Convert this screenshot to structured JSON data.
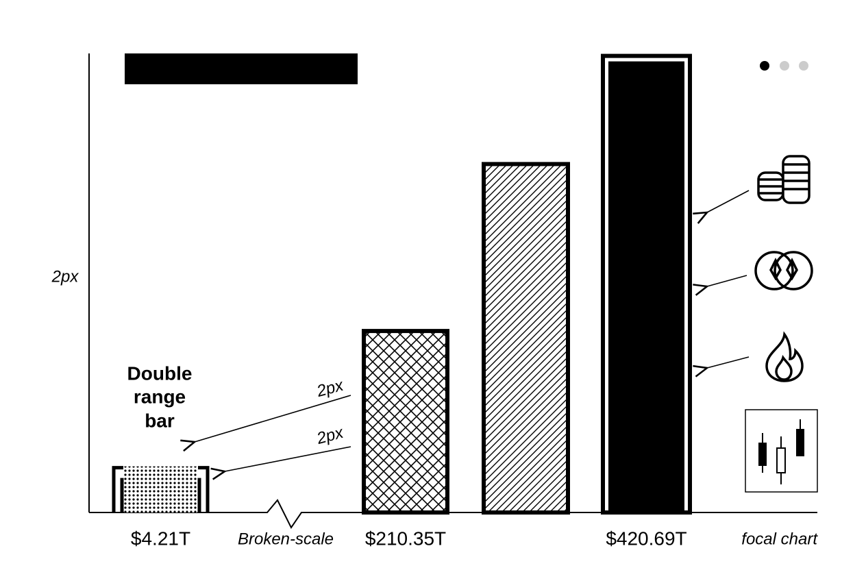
{
  "chart_data": {
    "type": "bar",
    "y_label": "2px",
    "values": [
      4.21,
      210.35,
      338,
      420.69
    ],
    "value_labels": [
      "$4.21T",
      "$210.35T",
      null,
      "$420.69T"
    ],
    "fills": [
      "dots",
      "crosshatch",
      "diagonal",
      "solid"
    ],
    "ylim_lower": [
      0,
      5
    ],
    "ylim": [
      70,
      421
    ],
    "color": "#000000",
    "annotations": {
      "break": "Broken-scale",
      "focal": "focal chart",
      "callout": [
        "Double",
        "range",
        "bar"
      ],
      "arrow_labels": [
        "2px",
        "2px"
      ]
    }
  }
}
